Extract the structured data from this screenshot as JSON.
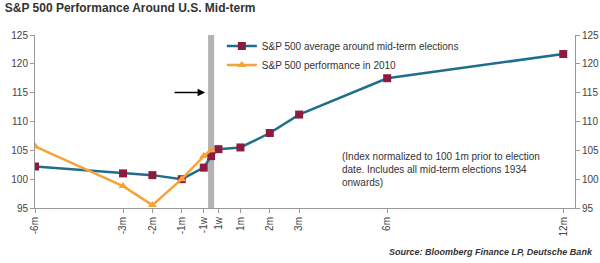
{
  "chart_data": {
    "type": "line",
    "title": "S&P 500 Performance Around U.S. Mid-term",
    "x": [
      -6,
      -3,
      -2,
      -1,
      -0.25,
      0,
      0.25,
      1,
      2,
      3,
      6,
      12
    ],
    "series": [
      {
        "name": "S&P 500 average around mid-term elections",
        "color": "#1f6e8c",
        "marker": "square",
        "values": [
          102.2,
          101,
          100.7,
          100,
          102,
          104,
          105.2,
          105.5,
          108,
          111.2,
          117.5,
          121.7
        ]
      },
      {
        "name": "S&P 500 performance in 2010",
        "color": "#f5a33a",
        "marker": "triangle-up",
        "values": [
          105.7,
          98.8,
          95.5,
          100,
          104,
          105,
          null,
          null,
          null,
          null,
          null,
          null
        ]
      }
    ],
    "xlim": [
      -6,
      12.4
    ],
    "xticks": [
      {
        "value": -6,
        "label": "-6m"
      },
      {
        "value": -3,
        "label": "-3m"
      },
      {
        "value": -2,
        "label": "-2m"
      },
      {
        "value": -1,
        "label": "-1m"
      },
      {
        "value": -0.25,
        "label": "-1w"
      },
      {
        "value": 0.25,
        "label": "1w"
      },
      {
        "value": 1,
        "label": "1m"
      },
      {
        "value": 2,
        "label": "2m"
      },
      {
        "value": 3,
        "label": "3m"
      },
      {
        "value": 6,
        "label": "6m"
      },
      {
        "value": 12,
        "label": "12m"
      }
    ],
    "ylim": [
      95,
      125
    ],
    "yticks": [
      95,
      100,
      105,
      110,
      115,
      120,
      125
    ],
    "grid": false,
    "legend": "top",
    "annotations": [
      "(Index normalized to 100 1m prior to election date. Includes all mid-term elections 1934 onwards)",
      "Source: Bloomberg Finance LP, Deutsche Bank"
    ]
  }
}
